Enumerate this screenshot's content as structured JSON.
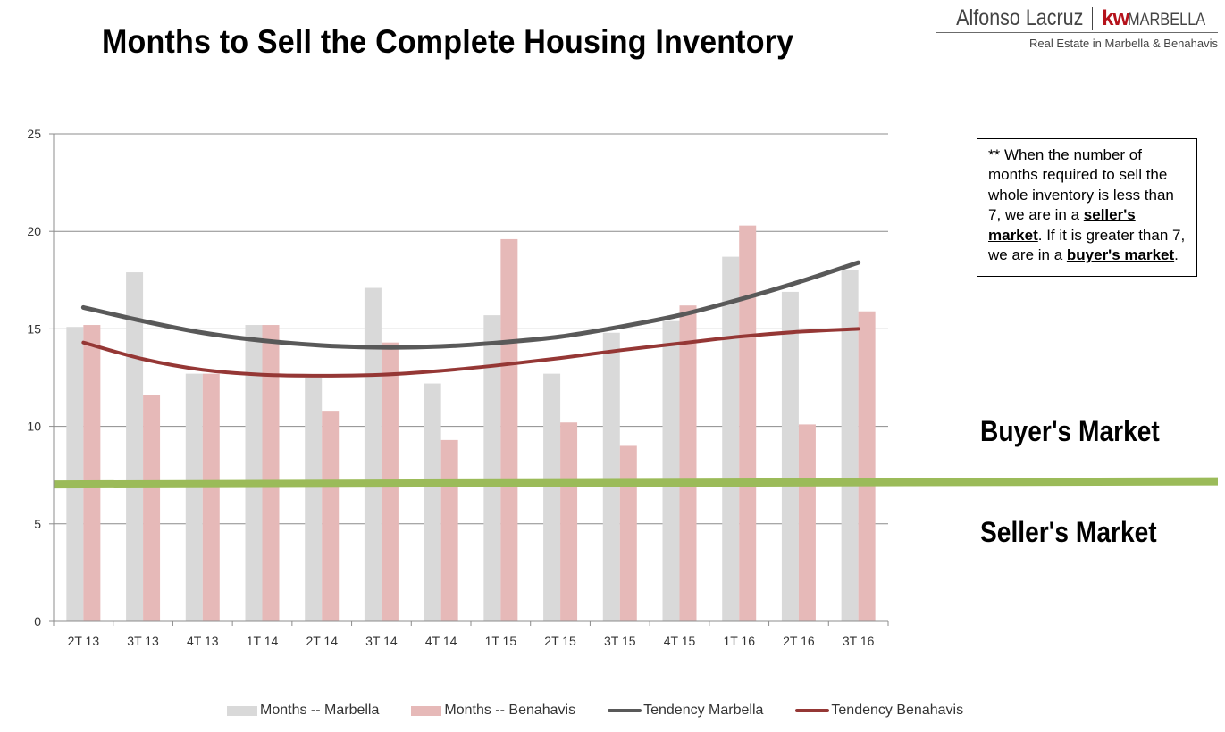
{
  "page": {
    "title": "Months to Sell the Complete Housing Inventory"
  },
  "brand": {
    "name": "Alfonso Lacruz",
    "kw": "kw",
    "city": "MARBELLA",
    "tagline": "Real Estate in Marbella & Benahavis"
  },
  "note": {
    "part1": "** When the number of months required to sell the whole inventory is less  than 7, we are in a ",
    "seller": "seller's market",
    "part2": ". If it is greater than 7, we are in a ",
    "buyer": "buyer's market",
    "part3": "."
  },
  "labels": {
    "buyers_market": "Buyer's Market",
    "sellers_market": "Seller's Market"
  },
  "colors": {
    "marbella_bar": "#d9d9d9",
    "benahavis_bar": "#e6b9b8",
    "tendency_marbella": "#595959",
    "tendency_benahavis": "#953735",
    "threshold": "#9bbb59",
    "grid": "#8c8c8c"
  },
  "chart_data": {
    "type": "bar",
    "title": "Months to Sell the Complete Housing Inventory",
    "categories": [
      "2T 13",
      "3T 13",
      "4T 13",
      "1T 14",
      "2T 14",
      "3T 14",
      "4T 14",
      "1T 15",
      "2T 15",
      "3T 15",
      "4T 15",
      "1T 16",
      "2T 16",
      "3T 16"
    ],
    "series": [
      {
        "name": "Months -- Marbella",
        "kind": "bar",
        "values": [
          15.1,
          17.9,
          12.7,
          15.2,
          12.5,
          17.1,
          12.2,
          15.7,
          12.7,
          14.8,
          15.4,
          18.7,
          16.9,
          18.0
        ]
      },
      {
        "name": "Months -- Benahavis",
        "kind": "bar",
        "values": [
          15.2,
          11.6,
          12.7,
          15.2,
          10.8,
          14.3,
          9.3,
          19.6,
          10.2,
          9.0,
          16.2,
          20.3,
          10.1,
          15.9
        ]
      },
      {
        "name": "Tendency Marbella",
        "kind": "line",
        "values": [
          16.1,
          15.4,
          14.8,
          14.4,
          14.15,
          14.05,
          14.1,
          14.3,
          14.6,
          15.1,
          15.7,
          16.5,
          17.4,
          18.4
        ]
      },
      {
        "name": "Tendency Benahavis",
        "kind": "line",
        "values": [
          14.3,
          13.45,
          12.9,
          12.65,
          12.6,
          12.65,
          12.85,
          13.15,
          13.5,
          13.9,
          14.25,
          14.6,
          14.85,
          15.0
        ]
      }
    ],
    "threshold": {
      "value": 7
    },
    "ylim": [
      0,
      25
    ],
    "yticks": [
      0,
      5,
      10,
      15,
      20,
      25
    ],
    "xlabel": "",
    "ylabel": "",
    "grid": true,
    "legend": "bottom"
  }
}
